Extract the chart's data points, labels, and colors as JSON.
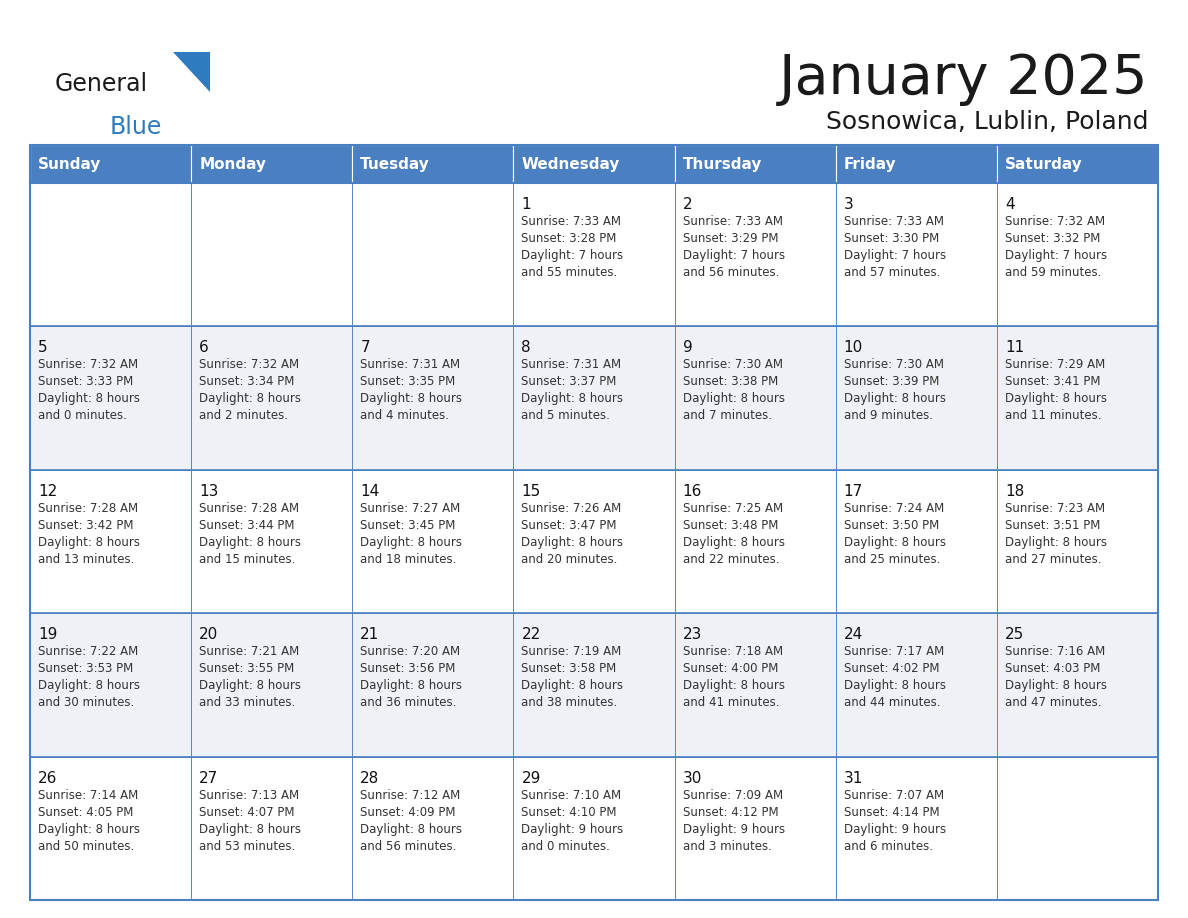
{
  "title": "January 2025",
  "subtitle": "Sosnowica, Lublin, Poland",
  "days_of_week": [
    "Sunday",
    "Monday",
    "Tuesday",
    "Wednesday",
    "Thursday",
    "Friday",
    "Saturday"
  ],
  "header_bg": "#4a7fc1",
  "header_text": "#ffffff",
  "row_bg_even": "#ffffff",
  "row_bg_odd": "#eef2f7",
  "border_color": "#4a7fc1",
  "inner_border_color": "#4a7fc1",
  "title_color": "#1a1a1a",
  "subtitle_color": "#1a1a1a",
  "cell_text_color": "#333333",
  "day_num_color": "#111111",
  "logo_text_color": "#1a1a1a",
  "logo_blue_color": "#2e7bbf",
  "calendar": [
    [
      {
        "day": null,
        "info": null
      },
      {
        "day": null,
        "info": null
      },
      {
        "day": null,
        "info": null
      },
      {
        "day": 1,
        "sunrise": "7:33 AM",
        "sunset": "3:28 PM",
        "daylight": "7 hours",
        "daylight2": "and 55 minutes."
      },
      {
        "day": 2,
        "sunrise": "7:33 AM",
        "sunset": "3:29 PM",
        "daylight": "7 hours",
        "daylight2": "and 56 minutes."
      },
      {
        "day": 3,
        "sunrise": "7:33 AM",
        "sunset": "3:30 PM",
        "daylight": "7 hours",
        "daylight2": "and 57 minutes."
      },
      {
        "day": 4,
        "sunrise": "7:32 AM",
        "sunset": "3:32 PM",
        "daylight": "7 hours",
        "daylight2": "and 59 minutes."
      }
    ],
    [
      {
        "day": 5,
        "sunrise": "7:32 AM",
        "sunset": "3:33 PM",
        "daylight": "8 hours",
        "daylight2": "and 0 minutes."
      },
      {
        "day": 6,
        "sunrise": "7:32 AM",
        "sunset": "3:34 PM",
        "daylight": "8 hours",
        "daylight2": "and 2 minutes."
      },
      {
        "day": 7,
        "sunrise": "7:31 AM",
        "sunset": "3:35 PM",
        "daylight": "8 hours",
        "daylight2": "and 4 minutes."
      },
      {
        "day": 8,
        "sunrise": "7:31 AM",
        "sunset": "3:37 PM",
        "daylight": "8 hours",
        "daylight2": "and 5 minutes."
      },
      {
        "day": 9,
        "sunrise": "7:30 AM",
        "sunset": "3:38 PM",
        "daylight": "8 hours",
        "daylight2": "and 7 minutes."
      },
      {
        "day": 10,
        "sunrise": "7:30 AM",
        "sunset": "3:39 PM",
        "daylight": "8 hours",
        "daylight2": "and 9 minutes."
      },
      {
        "day": 11,
        "sunrise": "7:29 AM",
        "sunset": "3:41 PM",
        "daylight": "8 hours",
        "daylight2": "and 11 minutes."
      }
    ],
    [
      {
        "day": 12,
        "sunrise": "7:28 AM",
        "sunset": "3:42 PM",
        "daylight": "8 hours",
        "daylight2": "and 13 minutes."
      },
      {
        "day": 13,
        "sunrise": "7:28 AM",
        "sunset": "3:44 PM",
        "daylight": "8 hours",
        "daylight2": "and 15 minutes."
      },
      {
        "day": 14,
        "sunrise": "7:27 AM",
        "sunset": "3:45 PM",
        "daylight": "8 hours",
        "daylight2": "and 18 minutes."
      },
      {
        "day": 15,
        "sunrise": "7:26 AM",
        "sunset": "3:47 PM",
        "daylight": "8 hours",
        "daylight2": "and 20 minutes."
      },
      {
        "day": 16,
        "sunrise": "7:25 AM",
        "sunset": "3:48 PM",
        "daylight": "8 hours",
        "daylight2": "and 22 minutes."
      },
      {
        "day": 17,
        "sunrise": "7:24 AM",
        "sunset": "3:50 PM",
        "daylight": "8 hours",
        "daylight2": "and 25 minutes."
      },
      {
        "day": 18,
        "sunrise": "7:23 AM",
        "sunset": "3:51 PM",
        "daylight": "8 hours",
        "daylight2": "and 27 minutes."
      }
    ],
    [
      {
        "day": 19,
        "sunrise": "7:22 AM",
        "sunset": "3:53 PM",
        "daylight": "8 hours",
        "daylight2": "and 30 minutes."
      },
      {
        "day": 20,
        "sunrise": "7:21 AM",
        "sunset": "3:55 PM",
        "daylight": "8 hours",
        "daylight2": "and 33 minutes."
      },
      {
        "day": 21,
        "sunrise": "7:20 AM",
        "sunset": "3:56 PM",
        "daylight": "8 hours",
        "daylight2": "and 36 minutes."
      },
      {
        "day": 22,
        "sunrise": "7:19 AM",
        "sunset": "3:58 PM",
        "daylight": "8 hours",
        "daylight2": "and 38 minutes."
      },
      {
        "day": 23,
        "sunrise": "7:18 AM",
        "sunset": "4:00 PM",
        "daylight": "8 hours",
        "daylight2": "and 41 minutes."
      },
      {
        "day": 24,
        "sunrise": "7:17 AM",
        "sunset": "4:02 PM",
        "daylight": "8 hours",
        "daylight2": "and 44 minutes."
      },
      {
        "day": 25,
        "sunrise": "7:16 AM",
        "sunset": "4:03 PM",
        "daylight": "8 hours",
        "daylight2": "and 47 minutes."
      }
    ],
    [
      {
        "day": 26,
        "sunrise": "7:14 AM",
        "sunset": "4:05 PM",
        "daylight": "8 hours",
        "daylight2": "and 50 minutes."
      },
      {
        "day": 27,
        "sunrise": "7:13 AM",
        "sunset": "4:07 PM",
        "daylight": "8 hours",
        "daylight2": "and 53 minutes."
      },
      {
        "day": 28,
        "sunrise": "7:12 AM",
        "sunset": "4:09 PM",
        "daylight": "8 hours",
        "daylight2": "and 56 minutes."
      },
      {
        "day": 29,
        "sunrise": "7:10 AM",
        "sunset": "4:10 PM",
        "daylight": "9 hours",
        "daylight2": "and 0 minutes."
      },
      {
        "day": 30,
        "sunrise": "7:09 AM",
        "sunset": "4:12 PM",
        "daylight": "9 hours",
        "daylight2": "and 3 minutes."
      },
      {
        "day": 31,
        "sunrise": "7:07 AM",
        "sunset": "4:14 PM",
        "daylight": "9 hours",
        "daylight2": "and 6 minutes."
      },
      {
        "day": null,
        "info": null
      }
    ]
  ]
}
